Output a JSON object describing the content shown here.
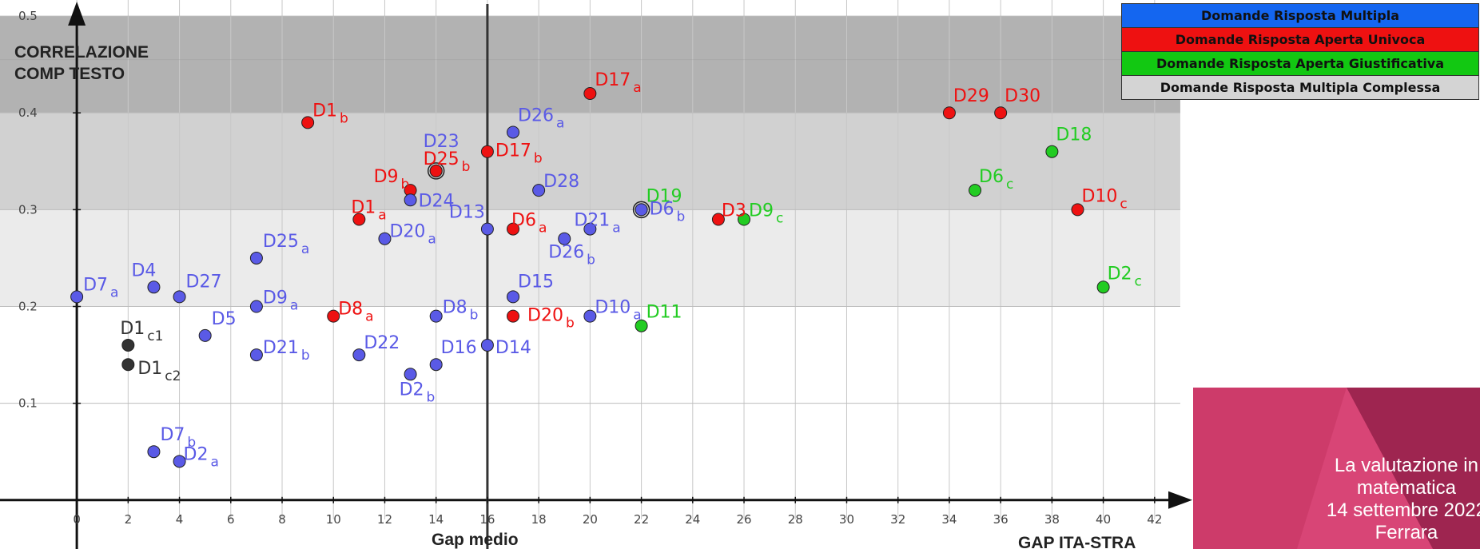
{
  "chart_data": {
    "type": "scatter",
    "title_lines": [
      "CORRELAZIONE",
      "COMP TESTO"
    ],
    "xlabel": "Gap medio",
    "xlabel2": "GAP ITA-STRA",
    "xlim": [
      -1,
      43.5
    ],
    "ylim": [
      -0.02,
      0.51
    ],
    "x_ticks": [
      0,
      2,
      4,
      6,
      8,
      10,
      12,
      14,
      16,
      18,
      20,
      22,
      24,
      26,
      28,
      30,
      32,
      34,
      36,
      38,
      40,
      42
    ],
    "y_ticks": [
      0.1,
      0.2,
      0.3,
      0.4,
      0.5
    ],
    "y_tick_labels": [
      "0.1",
      "0.2",
      "0.3",
      "0.4",
      "0.5"
    ],
    "bands": [
      {
        "from": 0.2,
        "to": 0.3,
        "color": "#ebebeb"
      },
      {
        "from": 0.3,
        "to": 0.4,
        "color": "#d1d1d1"
      },
      {
        "from": 0.4,
        "to": 0.5,
        "color": "#b2b2b2"
      }
    ],
    "vertical_line_x": 16,
    "colors": {
      "multipla": "#5a5ae6",
      "univoca": "#ee1111",
      "giustificativa": "#22cc22",
      "complessa": "#333333"
    },
    "points": [
      {
        "label": "D7",
        "sub": "a",
        "x": 0,
        "y": 0.21,
        "cat": "multipla"
      },
      {
        "label": "D4",
        "sub": "",
        "x": 3,
        "y": 0.22,
        "cat": "multipla"
      },
      {
        "label": "D27",
        "sub": "",
        "x": 4,
        "y": 0.21,
        "cat": "multipla"
      },
      {
        "label": "D1",
        "sub": "c1",
        "x": 2,
        "y": 0.16,
        "cat": "complessa"
      },
      {
        "label": "D1",
        "sub": "c2",
        "x": 2,
        "y": 0.14,
        "cat": "complessa"
      },
      {
        "label": "D5",
        "sub": "",
        "x": 5,
        "y": 0.17,
        "cat": "multipla"
      },
      {
        "label": "D7",
        "sub": "b",
        "x": 3,
        "y": 0.05,
        "cat": "multipla"
      },
      {
        "label": "D2",
        "sub": "a",
        "x": 4,
        "y": 0.04,
        "cat": "multipla"
      },
      {
        "label": "D25",
        "sub": "a",
        "x": 7,
        "y": 0.25,
        "cat": "multipla"
      },
      {
        "label": "D9",
        "sub": "a",
        "x": 7,
        "y": 0.2,
        "cat": "multipla"
      },
      {
        "label": "D21",
        "sub": "b",
        "x": 7,
        "y": 0.15,
        "cat": "multipla"
      },
      {
        "label": "D1",
        "sub": "b",
        "x": 9,
        "y": 0.39,
        "cat": "univoca"
      },
      {
        "label": "D8",
        "sub": "a",
        "x": 10,
        "y": 0.19,
        "cat": "univoca"
      },
      {
        "label": "D1",
        "sub": "a",
        "x": 11,
        "y": 0.29,
        "cat": "univoca"
      },
      {
        "label": "D22",
        "sub": "",
        "x": 11,
        "y": 0.15,
        "cat": "multipla"
      },
      {
        "label": "D20",
        "sub": "a",
        "x": 12,
        "y": 0.27,
        "cat": "multipla"
      },
      {
        "label": "D9",
        "sub": "b",
        "x": 13,
        "y": 0.32,
        "cat": "univoca"
      },
      {
        "label": "D24",
        "sub": "",
        "x": 13,
        "y": 0.31,
        "cat": "multipla"
      },
      {
        "label": "D2",
        "sub": "b",
        "x": 13,
        "y": 0.13,
        "cat": "multipla"
      },
      {
        "label": "D23",
        "sub": "",
        "x": 14,
        "y": 0.34,
        "cat": "multipla"
      },
      {
        "label": "D25",
        "sub": "b",
        "x": 14,
        "y": 0.34,
        "cat": "univoca"
      },
      {
        "label": "D8",
        "sub": "b",
        "x": 14,
        "y": 0.19,
        "cat": "multipla"
      },
      {
        "label": "D16",
        "sub": "",
        "x": 14,
        "y": 0.14,
        "cat": "multipla"
      },
      {
        "label": "D17",
        "sub": "b",
        "x": 16,
        "y": 0.36,
        "cat": "univoca"
      },
      {
        "label": "D13",
        "sub": "",
        "x": 16,
        "y": 0.28,
        "cat": "multipla"
      },
      {
        "label": "D14",
        "sub": "",
        "x": 16,
        "y": 0.16,
        "cat": "multipla"
      },
      {
        "label": "D26",
        "sub": "a",
        "x": 17,
        "y": 0.38,
        "cat": "multipla"
      },
      {
        "label": "D6",
        "sub": "a",
        "x": 17,
        "y": 0.28,
        "cat": "univoca"
      },
      {
        "label": "D15",
        "sub": "",
        "x": 17,
        "y": 0.21,
        "cat": "multipla"
      },
      {
        "label": "D20",
        "sub": "b",
        "x": 17,
        "y": 0.19,
        "cat": "univoca"
      },
      {
        "label": "D28",
        "sub": "",
        "x": 18,
        "y": 0.32,
        "cat": "multipla"
      },
      {
        "label": "D26",
        "sub": "b",
        "x": 19,
        "y": 0.27,
        "cat": "multipla"
      },
      {
        "label": "D17",
        "sub": "a",
        "x": 20,
        "y": 0.42,
        "cat": "univoca"
      },
      {
        "label": "D21",
        "sub": "a",
        "x": 20,
        "y": 0.28,
        "cat": "multipla"
      },
      {
        "label": "D10",
        "sub": "a",
        "x": 20,
        "y": 0.19,
        "cat": "multipla"
      },
      {
        "label": "D19",
        "sub": "",
        "x": 22,
        "y": 0.3,
        "cat": "giustificativa"
      },
      {
        "label": "D6",
        "sub": "b",
        "x": 22,
        "y": 0.3,
        "cat": "multipla"
      },
      {
        "label": "D11",
        "sub": "",
        "x": 22,
        "y": 0.18,
        "cat": "giustificativa"
      },
      {
        "label": "D3",
        "sub": "",
        "x": 25,
        "y": 0.29,
        "cat": "univoca"
      },
      {
        "label": "D9",
        "sub": "c",
        "x": 26,
        "y": 0.29,
        "cat": "giustificativa"
      },
      {
        "label": "D29",
        "sub": "",
        "x": 34,
        "y": 0.4,
        "cat": "univoca"
      },
      {
        "label": "D30",
        "sub": "",
        "x": 36,
        "y": 0.4,
        "cat": "univoca"
      },
      {
        "label": "D6",
        "sub": "c",
        "x": 35,
        "y": 0.32,
        "cat": "giustificativa"
      },
      {
        "label": "D18",
        "sub": "",
        "x": 38,
        "y": 0.36,
        "cat": "giustificativa"
      },
      {
        "label": "D10",
        "sub": "c",
        "x": 39,
        "y": 0.3,
        "cat": "univoca"
      },
      {
        "label": "D2",
        "sub": "c",
        "x": 40,
        "y": 0.22,
        "cat": "giustificativa"
      }
    ]
  },
  "legend": [
    {
      "label": "Domande Risposta Multipla",
      "color": "#1466f0",
      "text_color": "#111111"
    },
    {
      "label": "Domande Risposta Aperta Univoca",
      "color": "#ee1111",
      "text_color": "#111111"
    },
    {
      "label": "Domande Risposta Aperta Giustificativa",
      "color": "#12c812",
      "text_color": "#111111"
    },
    {
      "label": "Domande Risposta Multipla Complessa",
      "color": "#d4d4d4",
      "text_color": "#111111"
    }
  ],
  "footer": {
    "line1": "La valutazione in",
    "line2": "matematica",
    "line3": "14 settembre 2022",
    "line4": "Ferrara"
  }
}
